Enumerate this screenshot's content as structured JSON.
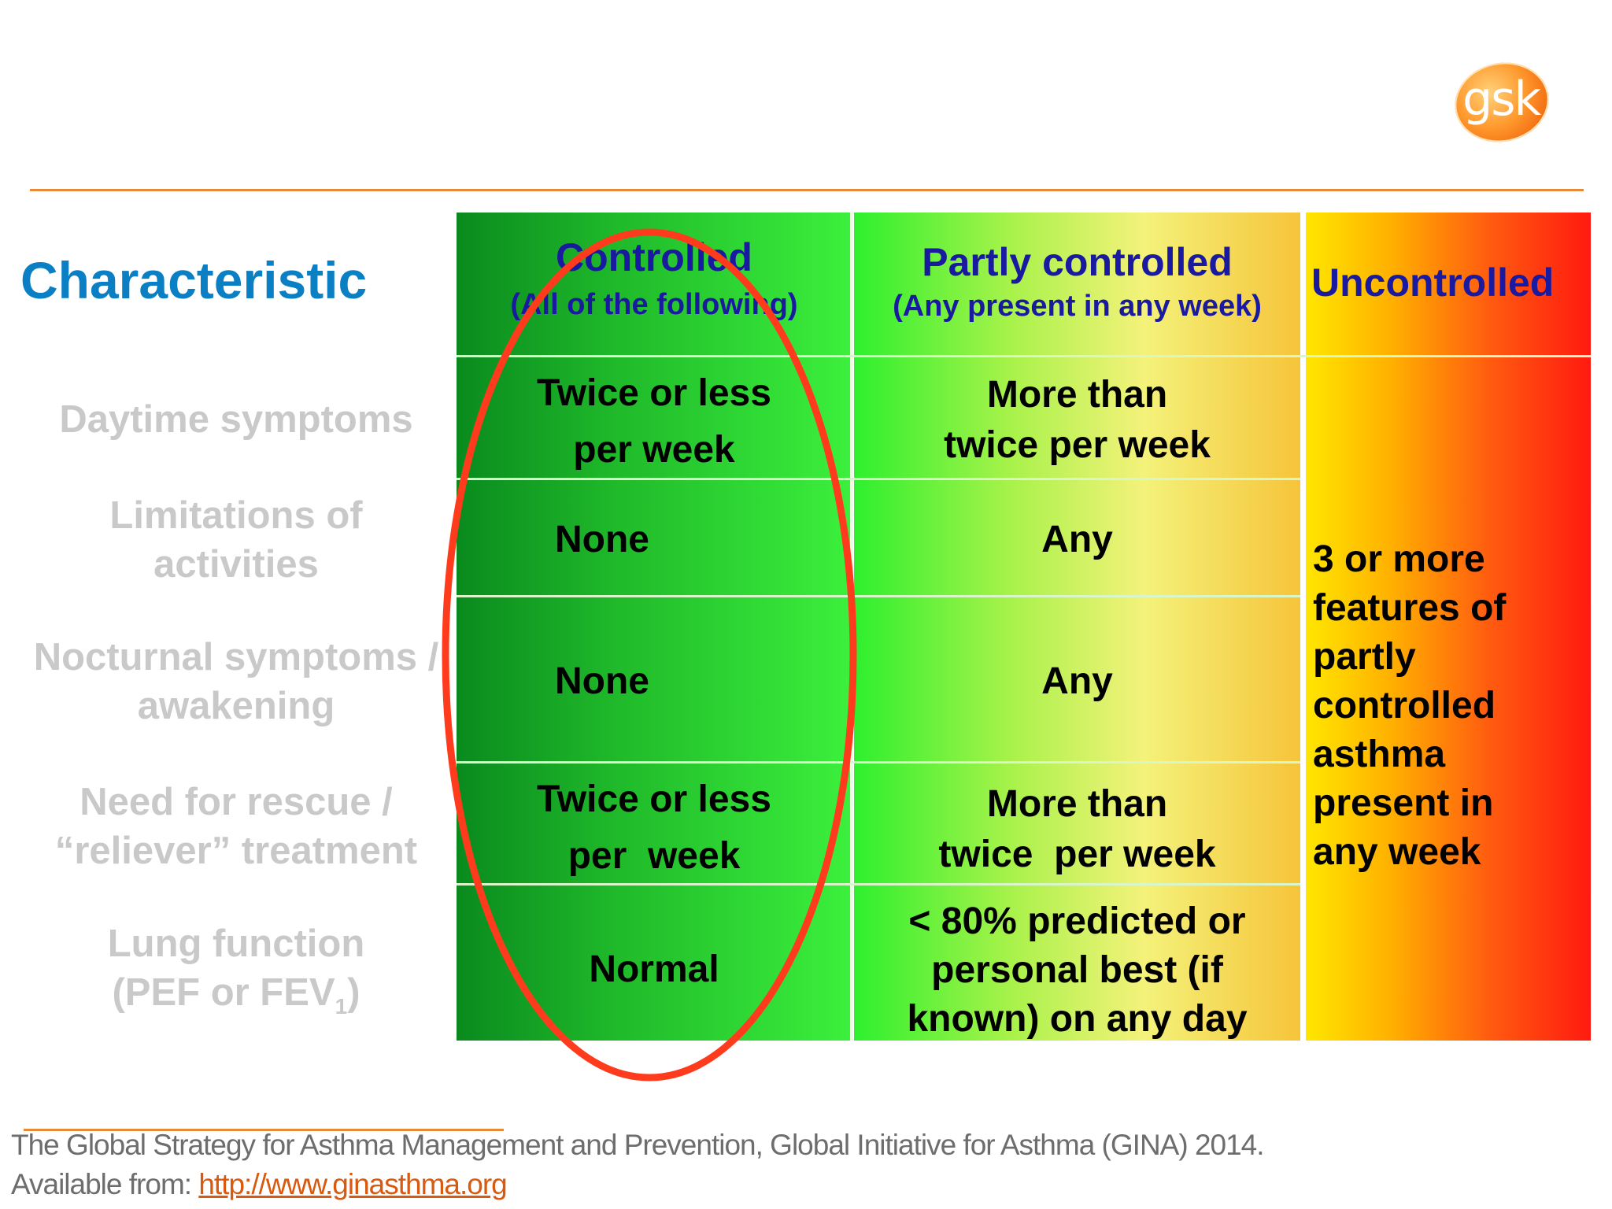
{
  "logo": {
    "text": "gsk"
  },
  "heading": "Characteristic",
  "row_labels": [
    {
      "line1": "Daytime symptoms",
      "line2": ""
    },
    {
      "line1": "Limitations of",
      "line2": "activities"
    },
    {
      "line1": "Nocturnal symptoms /",
      "line2": "awakening"
    },
    {
      "line1": "Need for rescue /",
      "line2": "“reliever” treatment"
    },
    {
      "line1": "Lung function",
      "line2_prefix": "(PEF or FEV",
      "line2_sub": "1",
      "line2_suffix": ")"
    }
  ],
  "columns": {
    "controlled": {
      "title": "Controlled",
      "subtitle": "(All of the following)",
      "cells": [
        {
          "line1": "Twice or less",
          "line2": "per week"
        },
        {
          "line1": "None",
          "line2": ""
        },
        {
          "line1": "None",
          "line2": ""
        },
        {
          "line1": "Twice or less",
          "line2": "per  week"
        },
        {
          "line1": "Normal",
          "line2": ""
        }
      ]
    },
    "partly": {
      "title": "Partly controlled",
      "subtitle": "(Any present in any week)",
      "cells": [
        {
          "line1": "More than",
          "line2": "twice per week"
        },
        {
          "line1": "Any",
          "line2": ""
        },
        {
          "line1": "Any",
          "line2": ""
        },
        {
          "line1": "More than",
          "line2": "twice  per week"
        },
        {
          "line1": "< 80% predicted or",
          "line2": "personal best (if",
          "line3": "known) on any day"
        }
      ]
    },
    "uncontrolled": {
      "title": "Uncontrolled",
      "lines": [
        "3 or more",
        "features of",
        "partly",
        "controlled",
        "asthma",
        "present in",
        "any week"
      ]
    }
  },
  "citation": {
    "line1": "The Global Strategy for Asthma Management and Prevention, Global Initiative for Asthma (GINA) 2014.",
    "available_prefix": "Available from: ",
    "link_text": "http://www.ginasthma.org"
  },
  "colors": {
    "heading": "#0a7fc4",
    "header_text": "#1a1aa0",
    "row_label": "#c9c9c9",
    "rule": "#e98a3b",
    "ellipse": "#ff3b1e",
    "link": "#d85a10"
  }
}
